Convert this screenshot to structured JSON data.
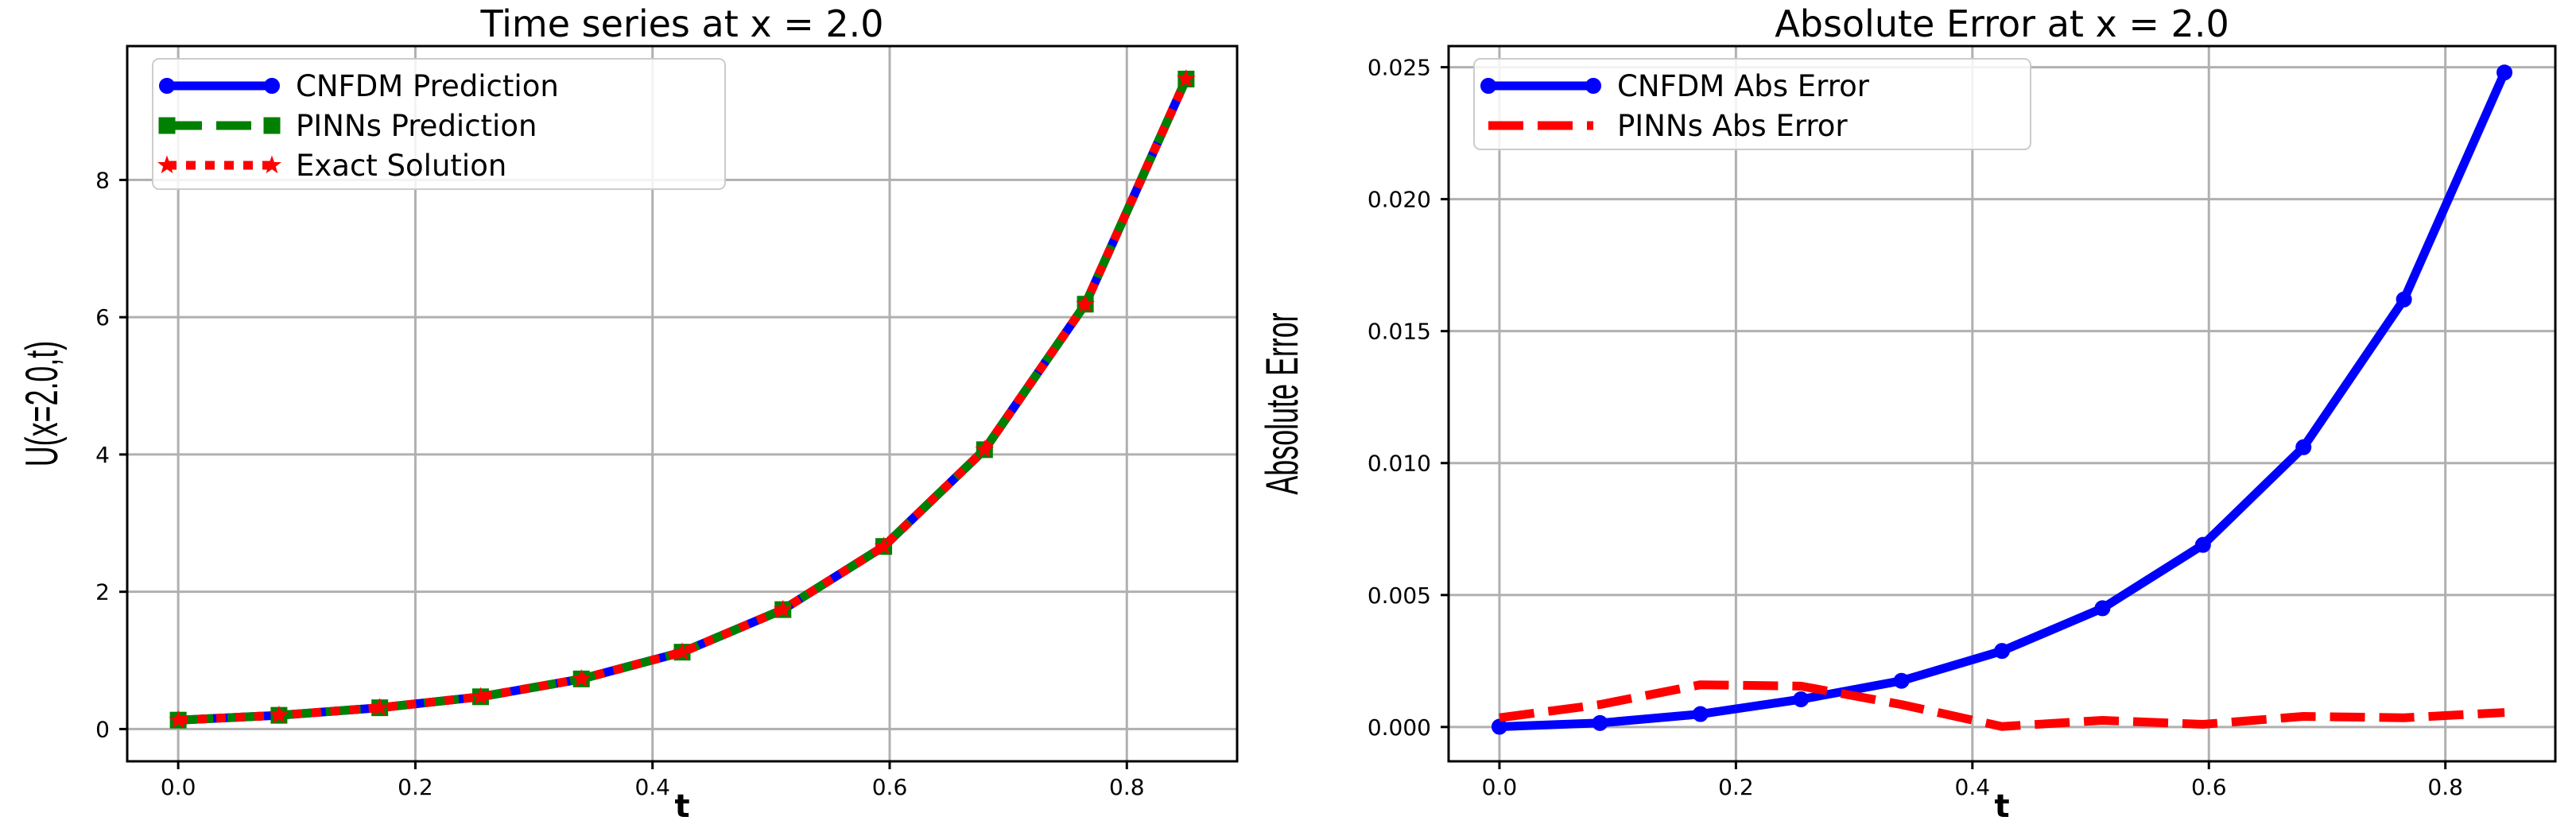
{
  "chart_data": [
    {
      "type": "line",
      "title": "Time series at x = 2.0",
      "xlabel": "t",
      "ylabel": "U(x=2.0,t)",
      "xlim": [
        -0.043,
        0.893
      ],
      "ylim": [
        -0.47,
        9.95
      ],
      "grid": true,
      "legend_position": "top-left",
      "xticks": [
        0.0,
        0.2,
        0.4,
        0.6,
        0.8
      ],
      "xtick_labels": [
        "0.0",
        "0.2",
        "0.4",
        "0.6",
        "0.8"
      ],
      "yticks": [
        0,
        2,
        4,
        6,
        8
      ],
      "ytick_labels": [
        "0",
        "2",
        "4",
        "6",
        "8"
      ],
      "x": [
        0.0,
        0.085,
        0.17,
        0.255,
        0.34,
        0.425,
        0.51,
        0.595,
        0.68,
        0.765,
        0.85
      ],
      "series": [
        {
          "name": "CNFDM Prediction",
          "color": "#0000ff",
          "style": "solid",
          "marker": "circle",
          "values": [
            0.13,
            0.2,
            0.31,
            0.47,
            0.73,
            1.12,
            1.74,
            2.66,
            4.07,
            6.19,
            9.47
          ]
        },
        {
          "name": "PINNs Prediction",
          "color": "#008000",
          "style": "dashed",
          "marker": "square",
          "values": [
            0.13,
            0.2,
            0.31,
            0.47,
            0.73,
            1.12,
            1.74,
            2.66,
            4.07,
            6.19,
            9.47
          ]
        },
        {
          "name": "Exact Solution",
          "color": "#ff0000",
          "style": "dotted",
          "marker": "star",
          "values": [
            0.13,
            0.2,
            0.31,
            0.47,
            0.73,
            1.12,
            1.74,
            2.66,
            4.07,
            6.19,
            9.47
          ]
        }
      ]
    },
    {
      "type": "line",
      "title": "Absolute Error at x = 2.0",
      "xlabel": "t",
      "ylabel": "Absolute Error",
      "xlim": [
        -0.043,
        0.893
      ],
      "ylim": [
        -0.0013,
        0.0258
      ],
      "grid": true,
      "legend_position": "top-left",
      "xticks": [
        0.0,
        0.2,
        0.4,
        0.6,
        0.8
      ],
      "xtick_labels": [
        "0.0",
        "0.2",
        "0.4",
        "0.6",
        "0.8"
      ],
      "yticks": [
        0.0,
        0.005,
        0.01,
        0.015,
        0.02,
        0.025
      ],
      "ytick_labels": [
        "0.000",
        "0.005",
        "0.010",
        "0.015",
        "0.020",
        "0.025"
      ],
      "x": [
        0.0,
        0.085,
        0.17,
        0.255,
        0.34,
        0.425,
        0.51,
        0.595,
        0.68,
        0.765,
        0.85
      ],
      "series": [
        {
          "name": "CNFDM Abs Error",
          "color": "#0000ff",
          "style": "solid",
          "marker": "circle",
          "values": [
            1e-05,
            0.00015,
            0.00049,
            0.00105,
            0.00175,
            0.00288,
            0.0045,
            0.0069,
            0.0106,
            0.0162,
            0.0248
          ]
        },
        {
          "name": "PINNs Abs Error",
          "color": "#ff0000",
          "style": "dashed",
          "marker": "none",
          "values": [
            0.00035,
            0.00085,
            0.0016,
            0.00155,
            0.00085,
            2e-05,
            0.00025,
            0.0001,
            0.0004,
            0.00035,
            0.00055
          ]
        }
      ]
    }
  ]
}
